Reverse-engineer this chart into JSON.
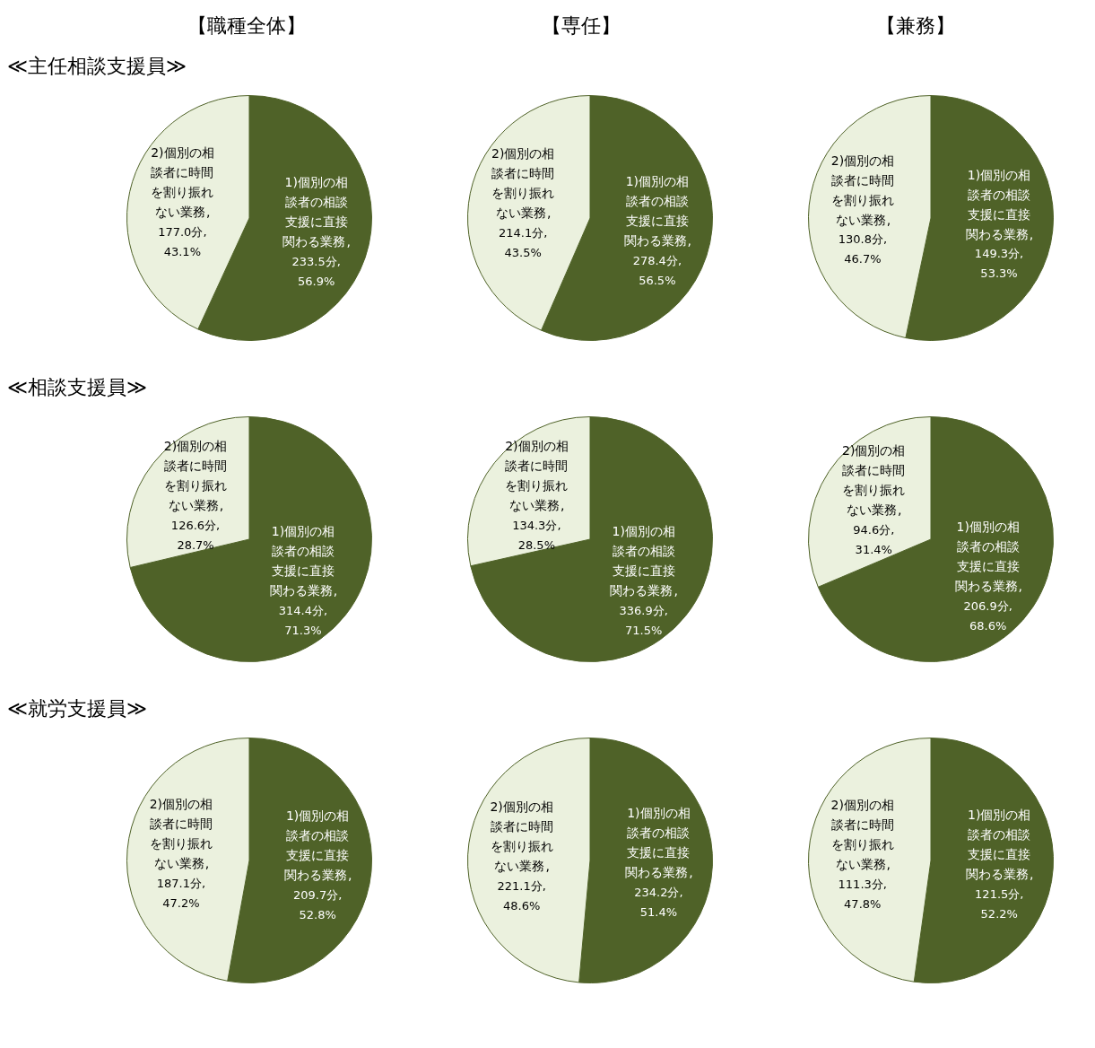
{
  "chart_data": [
    {
      "type": "pie",
      "title": "【職種全体】",
      "subtitle": "≪主任相談支援員≫",
      "categories": [
        "1)個別の相談者の相談支援に直接関わる業務",
        "2)個別の相談者に時間を割り振れない業務"
      ],
      "values": [
        233.5,
        177.0
      ],
      "value_labels": [
        ", 233.5分, 56.9%",
        ", 177.0分, 43.1%"
      ],
      "colors": [
        "#4f6228",
        "#ebf1de"
      ]
    },
    {
      "type": "pie",
      "title": "【専任】",
      "categories": [
        "1)個別の相談者の相談支援に直接関わる業務",
        "2)個別の相談者に時間を割り振れない業務"
      ],
      "values": [
        278.4,
        214.1
      ],
      "value_labels": [
        ", 278.4分, 56.5%",
        ", 214.1分, 43.5%"
      ],
      "colors": [
        "#4f6228",
        "#ebf1de"
      ]
    },
    {
      "type": "pie",
      "title": "【兼務】",
      "categories": [
        "1)個別の相談者の相談支援に直接関わる業務",
        "2)個別の相談者に時間を割り振れない業務"
      ],
      "values": [
        149.3,
        130.8
      ],
      "value_labels": [
        ", 149.3分, 53.3%",
        ", 130.8分, 46.7%"
      ],
      "colors": [
        "#4f6228",
        "#ebf1de"
      ]
    },
    {
      "type": "pie",
      "subtitle": "≪相談支援員≫",
      "categories": [
        "1)個別の相談者の相談支援に直接関わる業務",
        "2)個別の相談者に時間を割り振れない業務"
      ],
      "values": [
        314.4,
        126.6
      ],
      "value_labels": [
        ", 314.4分, 71.3%",
        ", 126.6分, 28.7%"
      ],
      "colors": [
        "#4f6228",
        "#ebf1de"
      ]
    },
    {
      "type": "pie",
      "categories": [
        "1)個別の相談者の相談支援に直接関わる業務",
        "2)個別の相談者に時間を割り振れない業務"
      ],
      "values": [
        336.9,
        134.3
      ],
      "value_labels": [
        ", 336.9分, 71.5%",
        ", 134.3分, 28.5%"
      ],
      "colors": [
        "#4f6228",
        "#ebf1de"
      ]
    },
    {
      "type": "pie",
      "categories": [
        "1)個別の相談者の相談支援に直接関わる業務",
        "2)個別の相談者に時間を割り振れない業務"
      ],
      "values": [
        206.9,
        94.6
      ],
      "value_labels": [
        ", 206.9分, 68.6%",
        ", 94.6分, 31.4%"
      ],
      "colors": [
        "#4f6228",
        "#ebf1de"
      ]
    },
    {
      "type": "pie",
      "subtitle": "≪就労支援員≫",
      "categories": [
        "1)個別の相談者の相談支援に直接関わる業務",
        "2)個別の相談者に時間を割り振れない業務"
      ],
      "values": [
        209.7,
        187.1
      ],
      "value_labels": [
        ", 209.7分, 52.8%",
        ", 187.1分, 47.2%"
      ],
      "colors": [
        "#4f6228",
        "#ebf1de"
      ]
    },
    {
      "type": "pie",
      "categories": [
        "1)個別の相談者の相談支援に直接関わる業務",
        "2)個別の相談者に時間を割り振れない業務"
      ],
      "values": [
        234.2,
        221.1
      ],
      "value_labels": [
        ", 234.2分, 51.4%",
        ", 221.1分, 48.6%"
      ],
      "colors": [
        "#4f6228",
        "#ebf1de"
      ]
    },
    {
      "type": "pie",
      "categories": [
        "1)個別の相談者の相談支援に直接関わる業務",
        "2)個別の相談者に時間を割り振れない業務"
      ],
      "values": [
        121.5,
        111.3
      ],
      "value_labels": [
        ", 121.5分, 52.2%",
        ", 111.3分, 47.8%"
      ],
      "colors": [
        "#4f6228",
        "#ebf1de"
      ]
    }
  ]
}
